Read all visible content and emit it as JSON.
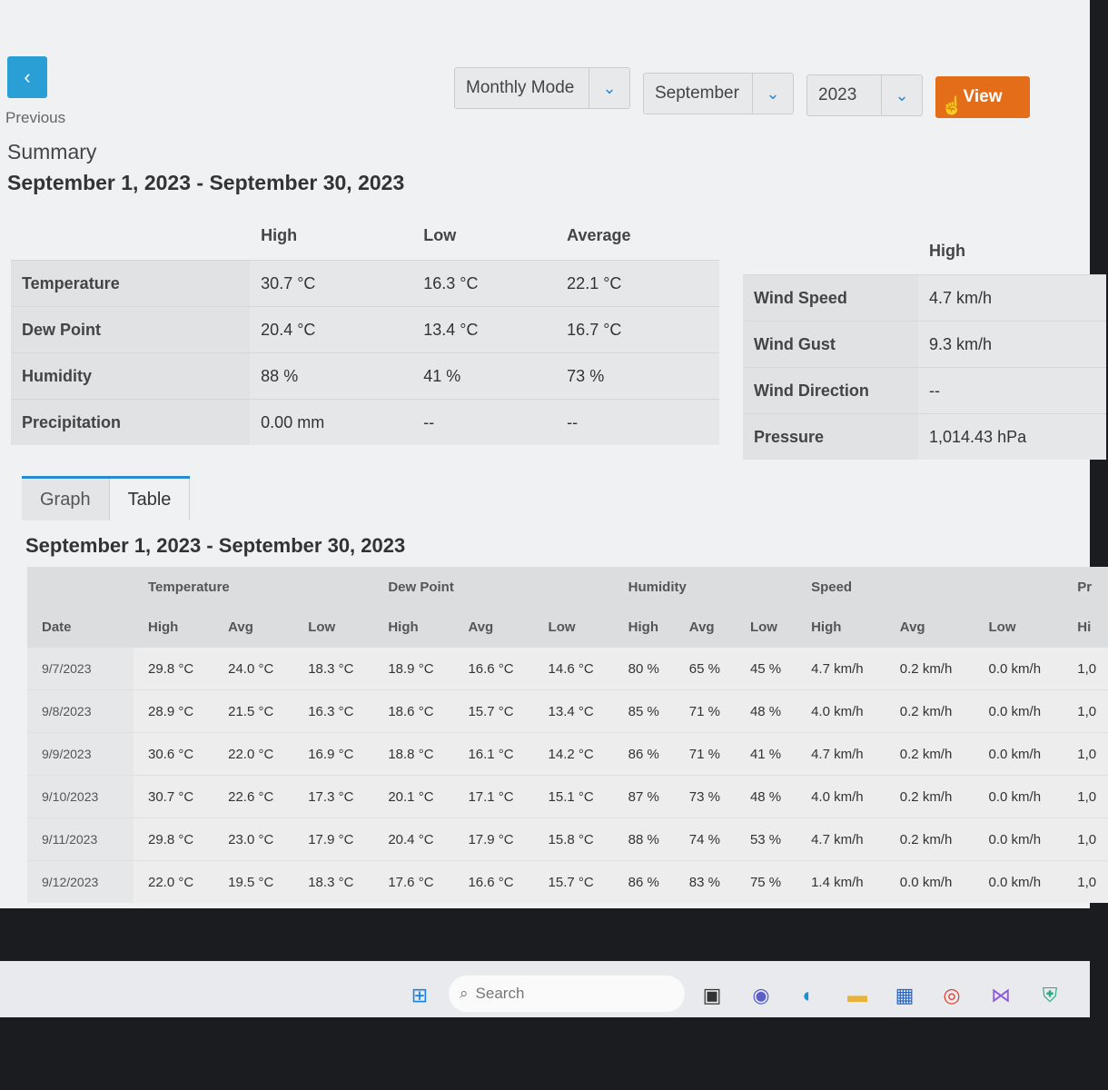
{
  "nav": {
    "back_glyph": "‹",
    "previous_label": "Previous"
  },
  "summary": {
    "title": "Summary",
    "range": "September 1, 2023 - September 30, 2023"
  },
  "controls": {
    "mode": "Monthly Mode",
    "month": "September",
    "year": "2023",
    "view_label": "View"
  },
  "summary_table": {
    "headers": [
      "High",
      "Low",
      "Average"
    ],
    "rows": [
      {
        "label": "Temperature",
        "high": "30.7 °C",
        "low": "16.3 °C",
        "avg": "22.1 °C"
      },
      {
        "label": "Dew Point",
        "high": "20.4 °C",
        "low": "13.4 °C",
        "avg": "16.7 °C"
      },
      {
        "label": "Humidity",
        "high": "88 %",
        "low": "41 %",
        "avg": "73 %"
      },
      {
        "label": "Precipitation",
        "high": "0.00 mm",
        "low": "--",
        "avg": "--"
      }
    ]
  },
  "wind_table": {
    "header": "High",
    "rows": [
      {
        "label": "Wind Speed",
        "high": "4.7 km/h"
      },
      {
        "label": "Wind Gust",
        "high": "9.3 km/h"
      },
      {
        "label": "Wind Direction",
        "high": "--"
      },
      {
        "label": "Pressure",
        "high": "1,014.43 hPa"
      }
    ]
  },
  "tabs": [
    "Graph",
    "Table"
  ],
  "detail": {
    "title": "September 1, 2023 - September 30, 2023",
    "groups": [
      "Temperature",
      "Dew Point",
      "Humidity",
      "Speed",
      "Pr"
    ],
    "date_header": "Date",
    "subheaders": [
      "High",
      "Avg",
      "Low",
      "High",
      "Avg",
      "Low",
      "High",
      "Avg",
      "Low",
      "High",
      "Avg",
      "Low",
      "Hi"
    ],
    "rows": [
      [
        "9/7/2023",
        "29.8 °C",
        "24.0 °C",
        "18.3 °C",
        "18.9 °C",
        "16.6 °C",
        "14.6 °C",
        "80 %",
        "65 %",
        "45 %",
        "4.7 km/h",
        "0.2 km/h",
        "0.0 km/h",
        "1,0"
      ],
      [
        "9/8/2023",
        "28.9 °C",
        "21.5 °C",
        "16.3 °C",
        "18.6 °C",
        "15.7 °C",
        "13.4 °C",
        "85 %",
        "71 %",
        "48 %",
        "4.0 km/h",
        "0.2 km/h",
        "0.0 km/h",
        "1,0"
      ],
      [
        "9/9/2023",
        "30.6 °C",
        "22.0 °C",
        "16.9 °C",
        "18.8 °C",
        "16.1 °C",
        "14.2 °C",
        "86 %",
        "71 %",
        "41 %",
        "4.7 km/h",
        "0.2 km/h",
        "0.0 km/h",
        "1,0"
      ],
      [
        "9/10/2023",
        "30.7 °C",
        "22.6 °C",
        "17.3 °C",
        "20.1 °C",
        "17.1 °C",
        "15.1 °C",
        "87 %",
        "73 %",
        "48 %",
        "4.0 km/h",
        "0.2 km/h",
        "0.0 km/h",
        "1,0"
      ],
      [
        "9/11/2023",
        "29.8 °C",
        "23.0 °C",
        "17.9 °C",
        "20.4 °C",
        "17.9 °C",
        "15.8 °C",
        "88 %",
        "74 %",
        "53 %",
        "4.7 km/h",
        "0.2 km/h",
        "0.0 km/h",
        "1,0"
      ],
      [
        "9/12/2023",
        "22.0 °C",
        "19.5 °C",
        "18.3 °C",
        "17.6 °C",
        "16.6 °C",
        "15.7 °C",
        "86 %",
        "83 %",
        "75 %",
        "1.4 km/h",
        "0.0 km/h",
        "0.0 km/h",
        "1,0"
      ]
    ]
  },
  "taskbar": {
    "search_placeholder": "Search"
  },
  "colors": {
    "accent": "#2a8ad0",
    "view_button": "#e46d1a",
    "back_button": "#2a9fd6"
  }
}
